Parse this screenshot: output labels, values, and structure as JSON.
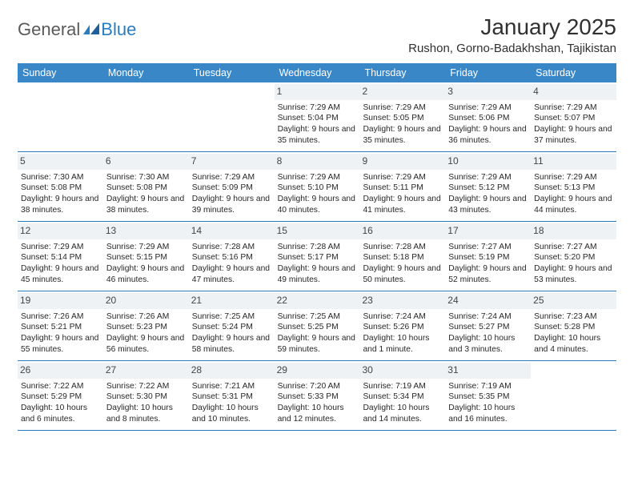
{
  "brand": {
    "text1": "General",
    "text2": "Blue"
  },
  "title": "January 2025",
  "location": "Rushon, Gorno-Badakhshan, Tajikistan",
  "colors": {
    "header_bg": "#3a87c8",
    "header_text": "#ffffff",
    "row_divider": "#2b7bbf",
    "daynum_bg": "#eef2f5",
    "body_text": "#272727",
    "title_text": "#303030",
    "brand_gray": "#5a5a5a",
    "brand_blue": "#2b7bbf",
    "page_bg": "#ffffff"
  },
  "typography": {
    "title_fontsize": 28,
    "location_fontsize": 15,
    "day_header_fontsize": 12.5,
    "daynum_fontsize": 12,
    "cell_fontsize": 10.3,
    "brand_fontsize": 22
  },
  "day_names": [
    "Sunday",
    "Monday",
    "Tuesday",
    "Wednesday",
    "Thursday",
    "Friday",
    "Saturday"
  ],
  "weeks": [
    [
      null,
      null,
      null,
      {
        "n": 1,
        "sr": "7:29 AM",
        "ss": "5:04 PM",
        "dl": "9 hours and 35 minutes."
      },
      {
        "n": 2,
        "sr": "7:29 AM",
        "ss": "5:05 PM",
        "dl": "9 hours and 35 minutes."
      },
      {
        "n": 3,
        "sr": "7:29 AM",
        "ss": "5:06 PM",
        "dl": "9 hours and 36 minutes."
      },
      {
        "n": 4,
        "sr": "7:29 AM",
        "ss": "5:07 PM",
        "dl": "9 hours and 37 minutes."
      }
    ],
    [
      {
        "n": 5,
        "sr": "7:30 AM",
        "ss": "5:08 PM",
        "dl": "9 hours and 38 minutes."
      },
      {
        "n": 6,
        "sr": "7:30 AM",
        "ss": "5:08 PM",
        "dl": "9 hours and 38 minutes."
      },
      {
        "n": 7,
        "sr": "7:29 AM",
        "ss": "5:09 PM",
        "dl": "9 hours and 39 minutes."
      },
      {
        "n": 8,
        "sr": "7:29 AM",
        "ss": "5:10 PM",
        "dl": "9 hours and 40 minutes."
      },
      {
        "n": 9,
        "sr": "7:29 AM",
        "ss": "5:11 PM",
        "dl": "9 hours and 41 minutes."
      },
      {
        "n": 10,
        "sr": "7:29 AM",
        "ss": "5:12 PM",
        "dl": "9 hours and 43 minutes."
      },
      {
        "n": 11,
        "sr": "7:29 AM",
        "ss": "5:13 PM",
        "dl": "9 hours and 44 minutes."
      }
    ],
    [
      {
        "n": 12,
        "sr": "7:29 AM",
        "ss": "5:14 PM",
        "dl": "9 hours and 45 minutes."
      },
      {
        "n": 13,
        "sr": "7:29 AM",
        "ss": "5:15 PM",
        "dl": "9 hours and 46 minutes."
      },
      {
        "n": 14,
        "sr": "7:28 AM",
        "ss": "5:16 PM",
        "dl": "9 hours and 47 minutes."
      },
      {
        "n": 15,
        "sr": "7:28 AM",
        "ss": "5:17 PM",
        "dl": "9 hours and 49 minutes."
      },
      {
        "n": 16,
        "sr": "7:28 AM",
        "ss": "5:18 PM",
        "dl": "9 hours and 50 minutes."
      },
      {
        "n": 17,
        "sr": "7:27 AM",
        "ss": "5:19 PM",
        "dl": "9 hours and 52 minutes."
      },
      {
        "n": 18,
        "sr": "7:27 AM",
        "ss": "5:20 PM",
        "dl": "9 hours and 53 minutes."
      }
    ],
    [
      {
        "n": 19,
        "sr": "7:26 AM",
        "ss": "5:21 PM",
        "dl": "9 hours and 55 minutes."
      },
      {
        "n": 20,
        "sr": "7:26 AM",
        "ss": "5:23 PM",
        "dl": "9 hours and 56 minutes."
      },
      {
        "n": 21,
        "sr": "7:25 AM",
        "ss": "5:24 PM",
        "dl": "9 hours and 58 minutes."
      },
      {
        "n": 22,
        "sr": "7:25 AM",
        "ss": "5:25 PM",
        "dl": "9 hours and 59 minutes."
      },
      {
        "n": 23,
        "sr": "7:24 AM",
        "ss": "5:26 PM",
        "dl": "10 hours and 1 minute."
      },
      {
        "n": 24,
        "sr": "7:24 AM",
        "ss": "5:27 PM",
        "dl": "10 hours and 3 minutes."
      },
      {
        "n": 25,
        "sr": "7:23 AM",
        "ss": "5:28 PM",
        "dl": "10 hours and 4 minutes."
      }
    ],
    [
      {
        "n": 26,
        "sr": "7:22 AM",
        "ss": "5:29 PM",
        "dl": "10 hours and 6 minutes."
      },
      {
        "n": 27,
        "sr": "7:22 AM",
        "ss": "5:30 PM",
        "dl": "10 hours and 8 minutes."
      },
      {
        "n": 28,
        "sr": "7:21 AM",
        "ss": "5:31 PM",
        "dl": "10 hours and 10 minutes."
      },
      {
        "n": 29,
        "sr": "7:20 AM",
        "ss": "5:33 PM",
        "dl": "10 hours and 12 minutes."
      },
      {
        "n": 30,
        "sr": "7:19 AM",
        "ss": "5:34 PM",
        "dl": "10 hours and 14 minutes."
      },
      {
        "n": 31,
        "sr": "7:19 AM",
        "ss": "5:35 PM",
        "dl": "10 hours and 16 minutes."
      },
      null
    ]
  ],
  "labels": {
    "sunrise": "Sunrise:",
    "sunset": "Sunset:",
    "daylight": "Daylight:"
  }
}
